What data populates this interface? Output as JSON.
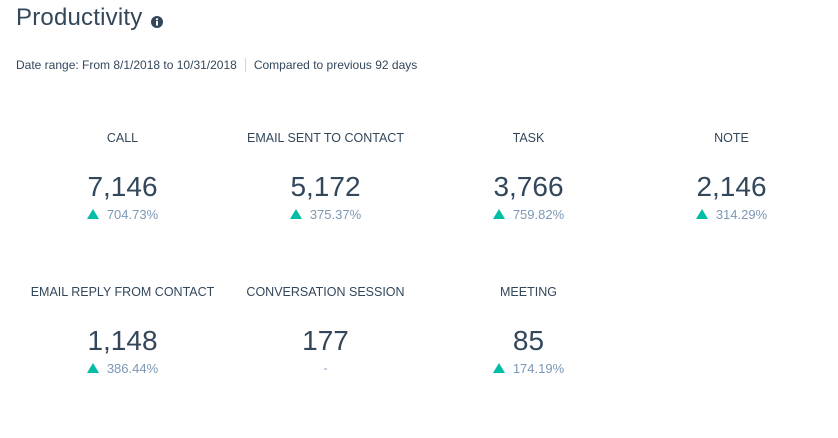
{
  "header": {
    "title": "Productivity"
  },
  "subheader": {
    "date_range": "Date range:  From 8/1/2018 to 10/31/2018",
    "comparison": "Compared to previous 92 days"
  },
  "metrics": [
    {
      "label": "CALL",
      "value": "7,146",
      "change": "704.73%",
      "trend": "up"
    },
    {
      "label": "EMAIL SENT TO CONTACT",
      "value": "5,172",
      "change": "375.37%",
      "trend": "up"
    },
    {
      "label": "TASK",
      "value": "3,766",
      "change": "759.82%",
      "trend": "up"
    },
    {
      "label": "NOTE",
      "value": "2,146",
      "change": "314.29%",
      "trend": "up"
    },
    {
      "label": "EMAIL REPLY FROM CONTACT",
      "value": "1,148",
      "change": "386.44%",
      "trend": "up"
    },
    {
      "label": "CONVERSATION SESSION",
      "value": "177",
      "change": "-",
      "trend": "none"
    },
    {
      "label": "MEETING",
      "value": "85",
      "change": "174.19%",
      "trend": "up"
    }
  ],
  "colors": {
    "text": "#33475b",
    "muted": "#7c98b6",
    "up": "#00bda5",
    "divider": "#cbd6e2"
  },
  "icons": {
    "info": "info-icon",
    "trend_up": "triangle-up-icon"
  }
}
